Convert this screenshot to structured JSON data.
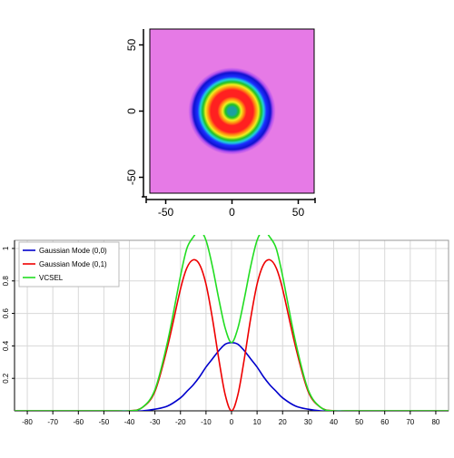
{
  "chart_data": [
    {
      "type": "heatmap",
      "title": "",
      "xlabel": "",
      "ylabel": "",
      "xlim": [
        -62,
        62
      ],
      "ylim": [
        -62,
        62
      ],
      "x_ticks": [
        -50,
        0,
        50
      ],
      "x_tick_labels": [
        "-50",
        "0",
        "50"
      ],
      "y_ticks": [
        50,
        0,
        -50
      ],
      "y_tick_labels": [
        "50",
        "0",
        "-50"
      ],
      "background_color": "#e67ae6",
      "pattern": "concentric rings centered at origin",
      "radial_profile": [
        {
          "r": 0,
          "color": "#1aa0a0"
        },
        {
          "r": 3,
          "color": "#1aa0a0"
        },
        {
          "r": 5,
          "color": "#22c022"
        },
        {
          "r": 7,
          "color": "#f0f020"
        },
        {
          "r": 9,
          "color": "#ff9010"
        },
        {
          "r": 11,
          "color": "#ff2020"
        },
        {
          "r": 16,
          "color": "#ff2020"
        },
        {
          "r": 18,
          "color": "#ff9010"
        },
        {
          "r": 20,
          "color": "#f0f020"
        },
        {
          "r": 22,
          "color": "#22c022"
        },
        {
          "r": 24,
          "color": "#20d0e0"
        },
        {
          "r": 26,
          "color": "#1a30ff"
        },
        {
          "r": 29,
          "color": "#1010d0"
        },
        {
          "r": 31,
          "color": "#b050f0"
        },
        {
          "r": 33,
          "color": "#e67ae6"
        }
      ]
    },
    {
      "type": "line",
      "title": "",
      "xlabel": "",
      "ylabel": "",
      "xlim": [
        -85,
        85
      ],
      "ylim": [
        0,
        1.05
      ],
      "grid": true,
      "legend_position": "top-left",
      "x_ticks": [
        -80,
        -70,
        -60,
        -50,
        -40,
        -30,
        -20,
        -10,
        0,
        10,
        20,
        30,
        40,
        50,
        60,
        70,
        80
      ],
      "x_tick_labels": [
        "-80",
        "-70",
        "-60",
        "-50",
        "-40",
        "-30",
        "-20",
        "-10",
        "0",
        "10",
        "20",
        "30",
        "40",
        "50",
        "60",
        "70",
        "80"
      ],
      "y_ticks": [
        0.2,
        0.4,
        0.6,
        0.8,
        1
      ],
      "y_tick_labels": [
        "0.2",
        "0.4",
        "0.6",
        "0.8",
        "1"
      ],
      "x": [
        -50,
        -45,
        -40,
        -35,
        -30,
        -25,
        -20,
        -17.5,
        -15,
        -12.5,
        -10,
        -7.5,
        -5,
        -2.5,
        0,
        2.5,
        5,
        7.5,
        10,
        12.5,
        15,
        17.5,
        20,
        25,
        30,
        35,
        40,
        45,
        50
      ],
      "series": [
        {
          "name": "Gaussian Mode (0,0)",
          "color": "#0000cc",
          "values": [
            0.0,
            0.0,
            0.0,
            0.0,
            0.01,
            0.03,
            0.08,
            0.12,
            0.16,
            0.21,
            0.27,
            0.32,
            0.37,
            0.41,
            0.42,
            0.41,
            0.37,
            0.32,
            0.27,
            0.21,
            0.16,
            0.12,
            0.08,
            0.03,
            0.01,
            0.0,
            0.0,
            0.0,
            0.0
          ]
        },
        {
          "name": "Gaussian Mode (0,1)",
          "color": "#ee0000",
          "values": [
            0.0,
            0.0,
            0.0,
            0.02,
            0.12,
            0.4,
            0.75,
            0.88,
            0.93,
            0.9,
            0.78,
            0.57,
            0.32,
            0.1,
            0.0,
            0.1,
            0.32,
            0.57,
            0.78,
            0.9,
            0.93,
            0.88,
            0.75,
            0.4,
            0.12,
            0.02,
            0.0,
            0.0,
            0.0
          ]
        },
        {
          "name": "VCSEL",
          "color": "#22dd22",
          "values": [
            0.0,
            0.0,
            0.0,
            0.02,
            0.13,
            0.43,
            0.83,
            1.0,
            1.07,
            1.11,
            1.05,
            0.89,
            0.69,
            0.51,
            0.42,
            0.51,
            0.69,
            0.89,
            1.05,
            1.11,
            1.07,
            1.0,
            0.83,
            0.43,
            0.13,
            0.02,
            0.0,
            0.0,
            0.0
          ]
        }
      ]
    }
  ]
}
